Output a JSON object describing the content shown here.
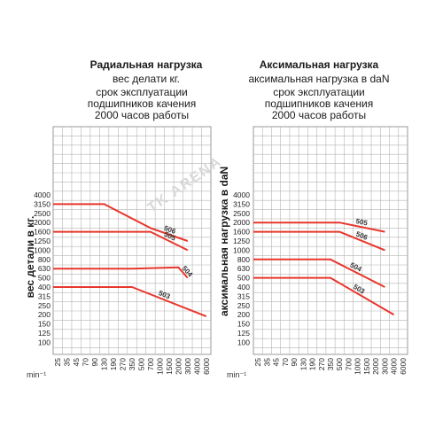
{
  "left": {
    "title": "Радиальная нагрузка",
    "subtitle": "вес делати кг.",
    "life_lines": [
      "срок эксплуатации",
      "подшипников качения",
      "2000 часов работы"
    ],
    "ylabel": "вес детали в кг.",
    "unit": "min⁻¹"
  },
  "right": {
    "title": "Аксимальная нагрузка",
    "subtitle": "аксимальная нагрузка в daN",
    "life_lines": [
      "срок эксплуатации",
      "подшипников качения",
      "2000 часов работы"
    ],
    "ylabel": "аксимальная нагрузка в daN",
    "unit": "min⁻¹"
  },
  "watermark": "TK ARENA",
  "chart_data": [
    {
      "type": "line",
      "title": "Радиальная нагрузка",
      "ylabel": "вес детали в кг.",
      "xlabel": "min⁻¹",
      "x_ticks": [
        "25",
        "35",
        "45",
        "70",
        "90",
        "130",
        "190",
        "270",
        "350",
        "500",
        "700",
        "1000",
        "1500",
        "2000",
        "3000",
        "4000",
        "6000"
      ],
      "y_ticks": [
        "4000",
        "3150",
        "2500",
        "2000",
        "1600",
        "1250",
        "1000",
        "800",
        "630",
        "500",
        "400",
        "315",
        "250",
        "200",
        "150",
        "125",
        "100"
      ],
      "series_color": "#e8372c",
      "series": [
        {
          "name": "506",
          "values": [
            [
              "25",
              3150
            ],
            [
              "130",
              3150
            ],
            [
              "700",
              1750
            ],
            [
              "3000",
              1250
            ]
          ]
        },
        {
          "name": "505",
          "values": [
            [
              "25",
              1600
            ],
            [
              "700",
              1600
            ],
            [
              "3000",
              1000
            ]
          ]
        },
        {
          "name": "504",
          "values": [
            [
              "25",
              630
            ],
            [
              "350",
              630
            ],
            [
              "2000",
              650
            ],
            [
              "3000",
              500
            ]
          ]
        },
        {
          "name": "503",
          "values": [
            [
              "25",
              400
            ],
            [
              "350",
              400
            ],
            [
              "6000",
              190
            ]
          ]
        }
      ]
    },
    {
      "type": "line",
      "title": "Аксимальная нагрузка",
      "ylabel": "аксимальная нагрузка в daN",
      "xlabel": "min⁻¹",
      "x_ticks": [
        "25",
        "35",
        "45",
        "70",
        "90",
        "130",
        "190",
        "270",
        "350",
        "500",
        "700",
        "1000",
        "1500",
        "2000",
        "3000",
        "4000",
        "6000"
      ],
      "y_ticks": [
        "4000",
        "3150",
        "2500",
        "2000",
        "1600",
        "1250",
        "1000",
        "800",
        "630",
        "500",
        "400",
        "315",
        "250",
        "200",
        "150",
        "125",
        "100"
      ],
      "series_color": "#e8372c",
      "series": [
        {
          "name": "505",
          "values": [
            [
              "25",
              2000
            ],
            [
              "500",
              2000
            ],
            [
              "3000",
              1600
            ]
          ]
        },
        {
          "name": "506",
          "values": [
            [
              "25",
              1600
            ],
            [
              "500",
              1600
            ],
            [
              "3000",
              1000
            ]
          ]
        },
        {
          "name": "504",
          "values": [
            [
              "25",
              800
            ],
            [
              "350",
              800
            ],
            [
              "3000",
              400
            ]
          ]
        },
        {
          "name": "503",
          "values": [
            [
              "25",
              500
            ],
            [
              "350",
              500
            ],
            [
              "4000",
              200
            ]
          ]
        }
      ]
    }
  ]
}
